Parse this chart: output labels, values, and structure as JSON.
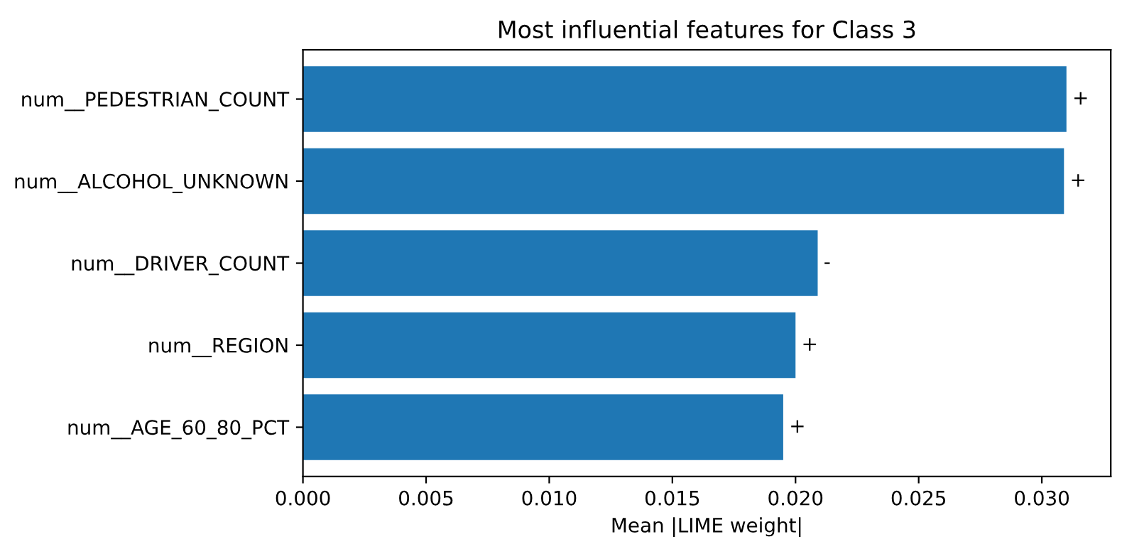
{
  "chart_data": {
    "type": "bar",
    "orientation": "horizontal",
    "title": "Most influential features for Class 3",
    "xlabel": "Mean |LIME weight|",
    "categories": [
      "num__PEDESTRIAN_COUNT",
      "num__ALCOHOL_UNKNOWN",
      "num__DRIVER_COUNT",
      "num__REGION",
      "num__AGE_60_80_PCT"
    ],
    "values": [
      0.031,
      0.0309,
      0.0209,
      0.02,
      0.0195
    ],
    "value_labels": [
      "+",
      "+",
      "-",
      "+",
      "+"
    ],
    "color": "#1f77b4",
    "xlim": [
      0,
      0.0328
    ],
    "xticks": [
      {
        "value": 0,
        "label": "0.000"
      },
      {
        "value": 0.005,
        "label": "0.005"
      },
      {
        "value": 0.01,
        "label": "0.010"
      },
      {
        "value": 0.015,
        "label": "0.015"
      },
      {
        "value": 0.02,
        "label": "0.020"
      },
      {
        "value": 0.025,
        "label": "0.025"
      },
      {
        "value": 0.03,
        "label": "0.030"
      }
    ],
    "grid": false
  }
}
